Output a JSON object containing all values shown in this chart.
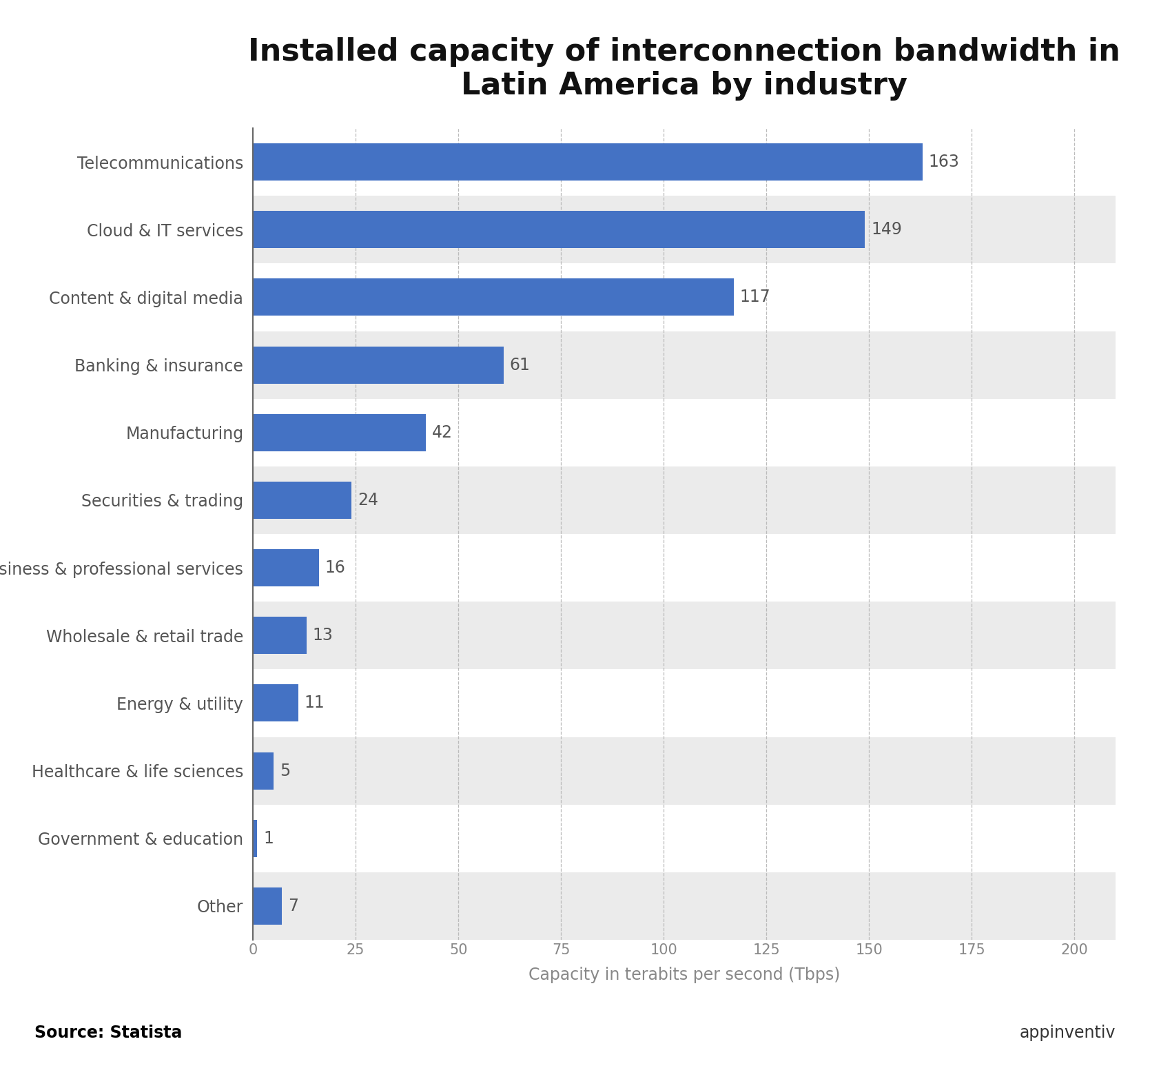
{
  "title": "Installed capacity of interconnection bandwidth in\nLatin America by industry",
  "categories": [
    "Telecommunications",
    "Cloud & IT services",
    "Content & digital media",
    "Banking & insurance",
    "Manufacturing",
    "Securities & trading",
    "Business & professional services",
    "Wholesale & retail trade",
    "Energy & utility",
    "Healthcare & life sciences",
    "Government & education",
    "Other"
  ],
  "values": [
    163,
    149,
    117,
    61,
    42,
    24,
    16,
    13,
    11,
    5,
    1,
    7
  ],
  "bar_color": "#4472C4",
  "background_color": "#ffffff",
  "row_color_white": "#ffffff",
  "row_color_gray": "#ebebeb",
  "xlabel": "Capacity in terabits per second (Tbps)",
  "xlim": [
    0,
    210
  ],
  "xticks": [
    0,
    25,
    50,
    75,
    100,
    125,
    150,
    175,
    200
  ],
  "title_fontsize": 32,
  "label_fontsize": 17,
  "tick_fontsize": 15,
  "value_fontsize": 17,
  "source_text": "Source: Statista",
  "source_fontsize": 17,
  "grid_color": "#bbbbbb",
  "bar_height": 0.55
}
